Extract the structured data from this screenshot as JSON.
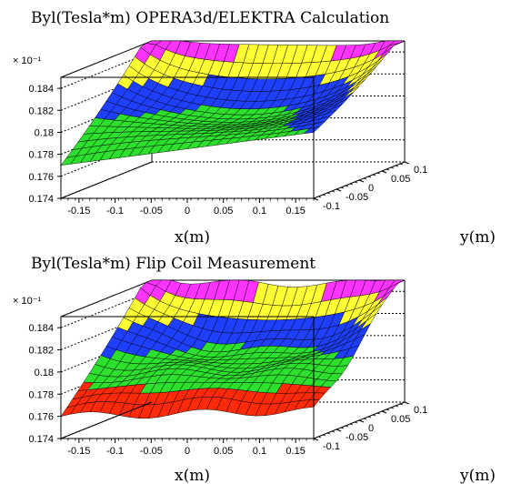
{
  "colors": {
    "band_magenta": "#ff33ff",
    "band_yellow": "#ffff33",
    "band_blue": "#1f3fff",
    "band_green": "#2ee02e",
    "band_red": "#ff2a0a",
    "mesh": "#000000",
    "background": "#ffffff"
  },
  "chart_data": [
    {
      "type": "surface",
      "title": "Byl(Tesla*m) OPERA3d/ELEKTRA Calculation",
      "xlabel": "x(m)",
      "ylabel": "y(m)",
      "zlabel": "",
      "z_multiplier": "× 10⁻¹",
      "xlim": [
        -0.175,
        0.175
      ],
      "ylim": [
        -0.1,
        0.1
      ],
      "zlim": [
        0.174,
        0.185
      ],
      "x_ticks": [
        "-0.15",
        "-0.1",
        "-0.05",
        "0",
        "0.05",
        "0.1",
        "0.15"
      ],
      "y_ticks": [
        "-0.1",
        "-0.05",
        "0",
        "0.05",
        "0.1"
      ],
      "z_ticks": [
        "0.174",
        "0.176",
        "0.178",
        "0.18",
        "0.182",
        "0.184"
      ],
      "grid": true,
      "color_bands": [
        {
          "min": 0.184,
          "color": "magenta"
        },
        {
          "min": 0.182,
          "color": "yellow"
        },
        {
          "min": 0.18,
          "color": "blue"
        },
        {
          "min": 0.178,
          "color": "green"
        }
      ],
      "corner_values": {
        "x_min_y_min": 0.177,
        "x_min_y_max": 0.1848,
        "x_max_y_min": 0.18,
        "x_max_y_max": 0.1845,
        "center": 0.179
      }
    },
    {
      "type": "surface",
      "title": "Byl(Tesla*m) Flip Coil Measurement",
      "xlabel": "x(m)",
      "ylabel": "y(m)",
      "zlabel": "",
      "z_multiplier": "× 10⁻¹",
      "xlim": [
        -0.175,
        0.175
      ],
      "ylim": [
        -0.1,
        0.1
      ],
      "zlim": [
        0.174,
        0.185
      ],
      "x_ticks": [
        "-0.15",
        "-0.1",
        "-0.05",
        "0",
        "0.05",
        "0.1",
        "0.15"
      ],
      "y_ticks": [
        "-0.1",
        "-0.05",
        "0",
        "0.05",
        "0.1"
      ],
      "z_ticks": [
        "0.174",
        "0.176",
        "0.178",
        "0.18",
        "0.182",
        "0.184"
      ],
      "grid": true,
      "color_bands": [
        {
          "min": 0.184,
          "color": "magenta"
        },
        {
          "min": 0.182,
          "color": "yellow"
        },
        {
          "min": 0.18,
          "color": "blue"
        },
        {
          "min": 0.178,
          "color": "green"
        },
        {
          "max": 0.178,
          "color": "red"
        }
      ],
      "corner_values": {
        "x_min_y_min": 0.176,
        "x_min_y_max": 0.1848,
        "x_max_y_min": 0.1765,
        "x_max_y_max": 0.1846,
        "center": 0.179
      }
    }
  ]
}
